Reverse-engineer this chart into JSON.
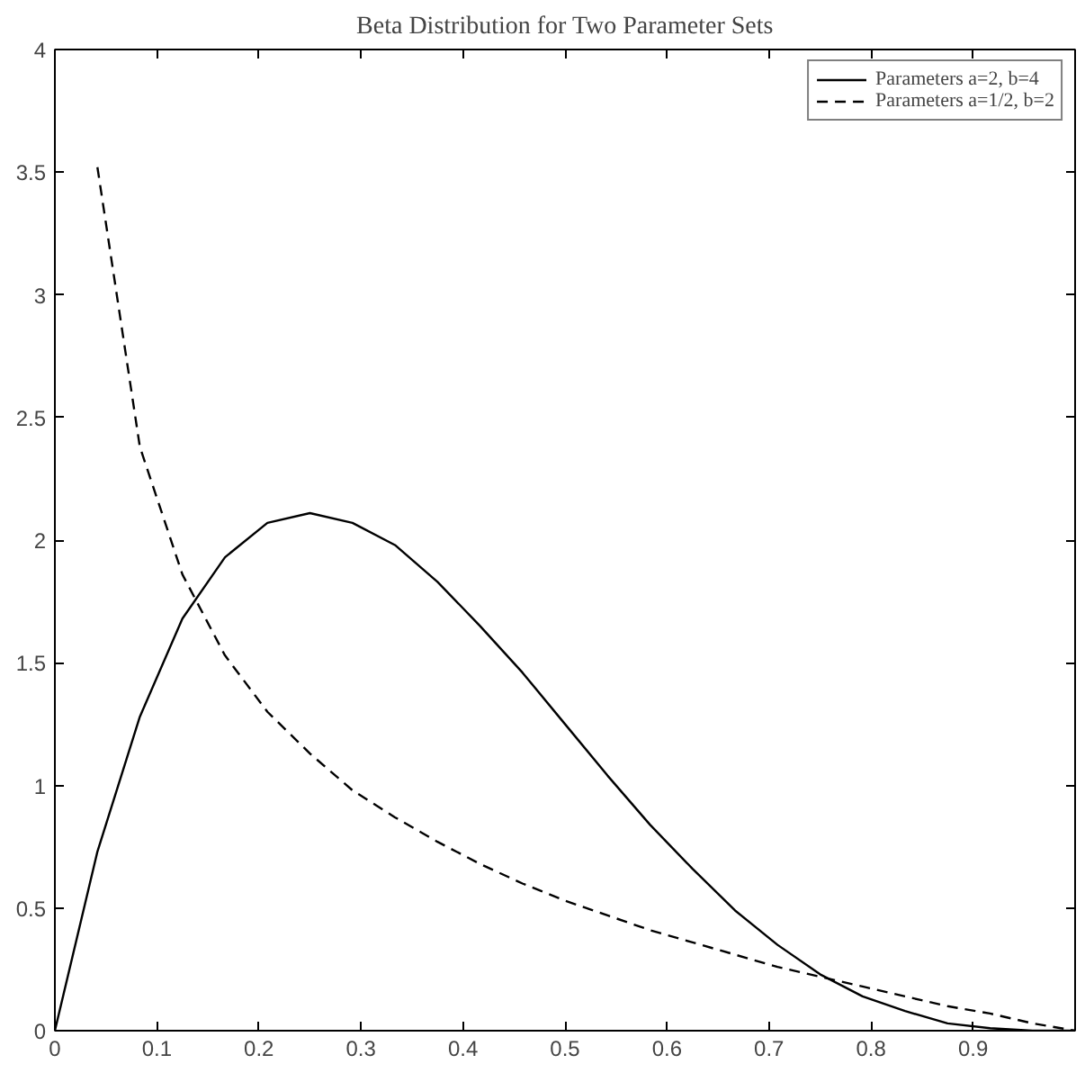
{
  "chart_data": {
    "type": "line",
    "title": "Beta Distribution for Two Parameter Sets",
    "xlim": [
      0,
      1
    ],
    "ylim": [
      0,
      4
    ],
    "xticks": [
      0,
      0.1,
      0.2,
      0.3,
      0.4,
      0.5,
      0.6,
      0.7,
      0.8,
      0.9
    ],
    "yticks": [
      0,
      0.5,
      1,
      1.5,
      2,
      2.5,
      3,
      3.5,
      4
    ],
    "legend": "top right",
    "grid": false,
    "marker": "none",
    "series": [
      {
        "name": "Parameters a=2, b=4",
        "color": "#000000",
        "line_style": "solid",
        "x": [
          0,
          0.0417,
          0.0833,
          0.125,
          0.1667,
          0.2083,
          0.25,
          0.2917,
          0.3333,
          0.375,
          0.4167,
          0.4583,
          0.5,
          0.5417,
          0.5833,
          0.625,
          0.6667,
          0.7083,
          0.75,
          0.7917,
          0.8333,
          0.875,
          0.9167,
          0.9583,
          1
        ],
        "values": [
          0,
          0.73,
          1.28,
          1.68,
          1.93,
          2.07,
          2.11,
          2.07,
          1.98,
          1.83,
          1.65,
          1.46,
          1.25,
          1.04,
          0.84,
          0.66,
          0.49,
          0.35,
          0.23,
          0.14,
          0.08,
          0.03,
          0.01,
          0,
          0
        ]
      },
      {
        "name": "Parameters a=1/2, b=2",
        "color": "#000000",
        "line_style": "dashed",
        "x": [
          0.0417,
          0.0833,
          0.125,
          0.1667,
          0.2083,
          0.25,
          0.2917,
          0.3333,
          0.375,
          0.4167,
          0.4583,
          0.5,
          0.5417,
          0.5833,
          0.625,
          0.6667,
          0.7083,
          0.75,
          0.7917,
          0.8333,
          0.875,
          0.9167,
          0.9583,
          1
        ],
        "values": [
          3.52,
          2.38,
          1.86,
          1.53,
          1.3,
          1.13,
          0.98,
          0.87,
          0.77,
          0.68,
          0.6,
          0.53,
          0.47,
          0.41,
          0.36,
          0.31,
          0.26,
          0.22,
          0.18,
          0.14,
          0.1,
          0.07,
          0.03,
          0
        ]
      }
    ]
  }
}
